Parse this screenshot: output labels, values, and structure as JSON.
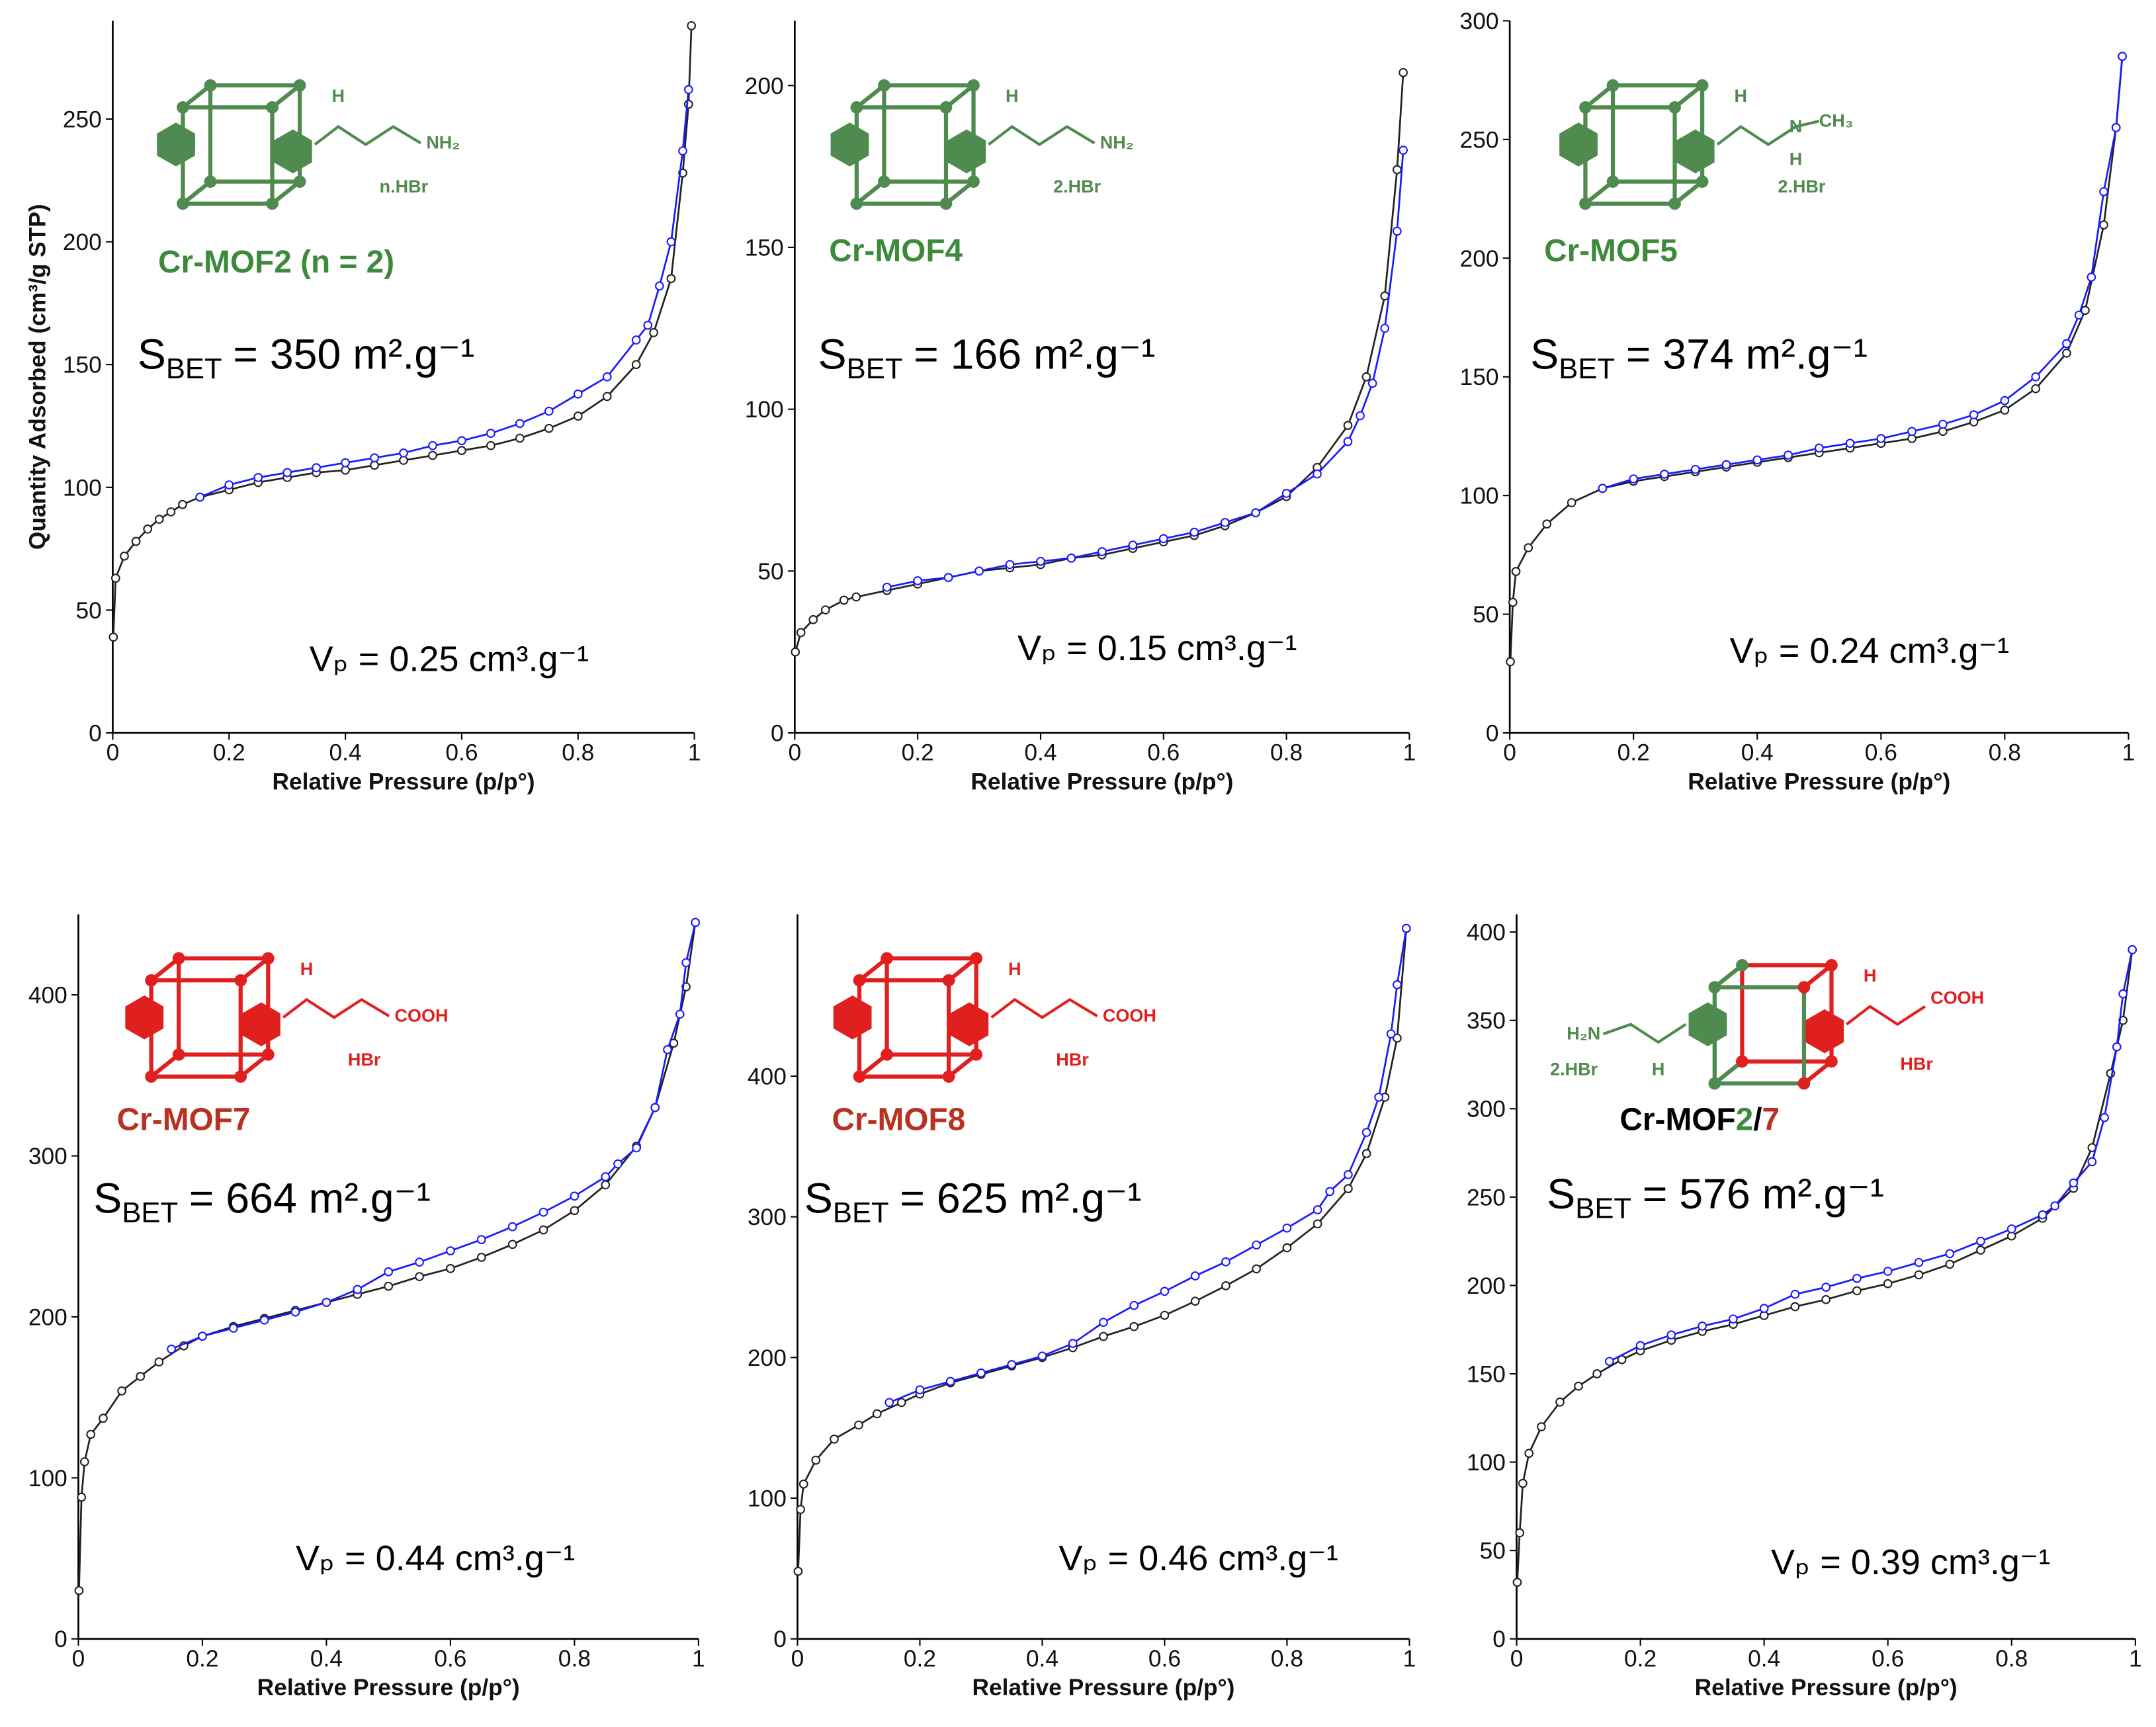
{
  "chart_data": [
    {
      "type": "line",
      "title": "Cr-MOF2 (n = 2)",
      "title_color": "#3d8a3d",
      "ylabel": "Quantity Adsorbed (cm³/g STP)",
      "xlabel": "Relative Pressure (p/p°)",
      "sbet": [
        "S",
        "BET",
        "= 350 m².g⁻¹"
      ],
      "vp": "Vₚ = 0.25 cm³.g⁻¹",
      "molecule_labels": [
        "H",
        "NH₂",
        "n.HBr"
      ],
      "molecule_colors": [
        "#4f8a4f"
      ],
      "xlim": [
        0,
        1
      ],
      "ylim": [
        0,
        290
      ],
      "xticks": [
        0,
        0.2,
        0.4,
        0.6,
        0.8,
        1
      ],
      "yticks": [
        0,
        50,
        100,
        150,
        200,
        250
      ],
      "series": [
        {
          "color": "#222222",
          "x": [
            0.001,
            0.005,
            0.02,
            0.04,
            0.06,
            0.08,
            0.1,
            0.12,
            0.15,
            0.2,
            0.25,
            0.3,
            0.35,
            0.4,
            0.45,
            0.5,
            0.55,
            0.6,
            0.65,
            0.7,
            0.75,
            0.8,
            0.85,
            0.9,
            0.93,
            0.96,
            0.98,
            0.99,
            0.995
          ],
          "values": [
            39,
            63,
            72,
            78,
            83,
            87,
            90,
            93,
            96,
            99,
            102,
            104,
            106,
            107,
            109,
            111,
            113,
            115,
            117,
            120,
            124,
            129,
            137,
            150,
            163,
            185,
            228,
            256,
            288
          ]
        },
        {
          "color": "#1a1aff",
          "x": [
            0.99,
            0.98,
            0.96,
            0.94,
            0.92,
            0.9,
            0.85,
            0.8,
            0.75,
            0.7,
            0.65,
            0.6,
            0.55,
            0.5,
            0.45,
            0.4,
            0.35,
            0.3,
            0.25,
            0.2,
            0.15
          ],
          "values": [
            262,
            237,
            200,
            182,
            166,
            160,
            145,
            138,
            131,
            126,
            122,
            119,
            117,
            114,
            112,
            110,
            108,
            106,
            104,
            101,
            96
          ]
        }
      ]
    },
    {
      "type": "line",
      "title": "Cr-MOF4",
      "title_color": "#3d8a3d",
      "xlabel": "Relative Pressure (p/p°)",
      "sbet": [
        "S",
        "BET",
        "= 166 m².g⁻¹"
      ],
      "vp": "Vₚ = 0.15 cm³.g⁻¹",
      "molecule_labels": [
        "H",
        "NH₂",
        "2.HBr"
      ],
      "molecule_colors": [
        "#4f8a4f"
      ],
      "xlim": [
        0,
        1
      ],
      "ylim": [
        0,
        220
      ],
      "xticks": [
        0,
        0.2,
        0.4,
        0.6,
        0.8,
        1
      ],
      "yticks": [
        0,
        50,
        100,
        150,
        200
      ],
      "series": [
        {
          "color": "#222222",
          "x": [
            0.001,
            0.01,
            0.03,
            0.05,
            0.08,
            0.1,
            0.15,
            0.2,
            0.25,
            0.3,
            0.35,
            0.4,
            0.45,
            0.5,
            0.55,
            0.6,
            0.65,
            0.7,
            0.75,
            0.8,
            0.85,
            0.9,
            0.93,
            0.96,
            0.98,
            0.99
          ],
          "values": [
            25,
            31,
            35,
            38,
            41,
            42,
            44,
            46,
            48,
            50,
            51,
            52,
            54,
            55,
            57,
            59,
            61,
            64,
            68,
            73,
            82,
            95,
            110,
            135,
            174,
            204
          ]
        },
        {
          "color": "#1a1aff",
          "x": [
            0.99,
            0.98,
            0.96,
            0.94,
            0.92,
            0.9,
            0.85,
            0.8,
            0.75,
            0.7,
            0.65,
            0.6,
            0.55,
            0.5,
            0.45,
            0.4,
            0.35,
            0.3,
            0.25,
            0.2,
            0.15
          ],
          "values": [
            180,
            155,
            125,
            108,
            98,
            90,
            80,
            74,
            68,
            65,
            62,
            60,
            58,
            56,
            54,
            53,
            52,
            50,
            48,
            47,
            45
          ]
        }
      ]
    },
    {
      "type": "line",
      "title": "Cr-MOF5",
      "title_color": "#3d8a3d",
      "xlabel": "Relative Pressure (p/p°)",
      "sbet": [
        "S",
        "BET",
        "= 374 m².g⁻¹"
      ],
      "vp": "Vₚ = 0.24 cm³.g⁻¹",
      "molecule_labels": [
        "H",
        "N",
        "CH₃",
        "H",
        "2.HBr"
      ],
      "molecule_colors": [
        "#4f8a4f"
      ],
      "xlim": [
        0,
        1
      ],
      "ylim": [
        0,
        300
      ],
      "xticks": [
        0,
        0.2,
        0.4,
        0.6,
        0.8,
        1
      ],
      "yticks": [
        0,
        50,
        100,
        150,
        200,
        250,
        300
      ],
      "series": [
        {
          "color": "#222222",
          "x": [
            0.001,
            0.005,
            0.01,
            0.03,
            0.06,
            0.1,
            0.15,
            0.2,
            0.25,
            0.3,
            0.35,
            0.4,
            0.45,
            0.5,
            0.55,
            0.6,
            0.65,
            0.7,
            0.75,
            0.8,
            0.85,
            0.9,
            0.93,
            0.96,
            0.98,
            0.99
          ],
          "values": [
            30,
            55,
            68,
            78,
            88,
            97,
            103,
            106,
            108,
            110,
            112,
            114,
            116,
            118,
            120,
            122,
            124,
            127,
            131,
            136,
            145,
            160,
            178,
            214,
            255,
            285
          ]
        },
        {
          "color": "#1a1aff",
          "x": [
            0.99,
            0.98,
            0.96,
            0.94,
            0.92,
            0.9,
            0.85,
            0.8,
            0.75,
            0.7,
            0.65,
            0.6,
            0.55,
            0.5,
            0.45,
            0.4,
            0.35,
            0.3,
            0.25,
            0.2,
            0.15
          ],
          "values": [
            285,
            255,
            228,
            192,
            176,
            164,
            150,
            140,
            134,
            130,
            127,
            124,
            122,
            120,
            117,
            115,
            113,
            111,
            109,
            107,
            103
          ]
        }
      ]
    },
    {
      "type": "line",
      "title": "Cr-MOF7",
      "title_color": "#b83222",
      "xlabel": "Relative Pressure (p/p°)",
      "sbet": [
        "S",
        "BET",
        "= 664 m².g⁻¹"
      ],
      "vp": "Vₚ = 0.44 cm³.g⁻¹",
      "molecule_labels": [
        "H",
        "COOH",
        "HBr"
      ],
      "molecule_colors": [
        "#e0201e"
      ],
      "xlim": [
        0,
        1
      ],
      "ylim": [
        0,
        450
      ],
      "xticks": [
        0,
        0.2,
        0.4,
        0.6,
        0.8,
        1
      ],
      "yticks": [
        0,
        100,
        200,
        300,
        400
      ],
      "series": [
        {
          "color": "#222222",
          "x": [
            0.001,
            0.005,
            0.01,
            0.02,
            0.04,
            0.07,
            0.1,
            0.13,
            0.17,
            0.2,
            0.25,
            0.3,
            0.35,
            0.4,
            0.45,
            0.5,
            0.55,
            0.6,
            0.65,
            0.7,
            0.75,
            0.8,
            0.85,
            0.9,
            0.93,
            0.96,
            0.98,
            0.995
          ],
          "values": [
            30,
            88,
            110,
            127,
            137,
            154,
            163,
            172,
            182,
            188,
            194,
            199,
            204,
            209,
            214,
            219,
            225,
            230,
            237,
            245,
            254,
            266,
            282,
            306,
            330,
            370,
            405,
            445
          ]
        },
        {
          "color": "#1a1aff",
          "x": [
            0.995,
            0.98,
            0.97,
            0.95,
            0.93,
            0.9,
            0.87,
            0.85,
            0.8,
            0.75,
            0.7,
            0.65,
            0.6,
            0.55,
            0.5,
            0.45,
            0.4,
            0.35,
            0.3,
            0.25,
            0.2,
            0.15
          ],
          "values": [
            445,
            420,
            388,
            366,
            330,
            305,
            295,
            287,
            275,
            265,
            256,
            248,
            241,
            234,
            228,
            217,
            209,
            203,
            198,
            193,
            188,
            180
          ]
        }
      ]
    },
    {
      "type": "line",
      "title": "Cr-MOF8",
      "title_color": "#b83222",
      "xlabel": "Relative Pressure (p/p°)",
      "sbet": [
        "S",
        "BET",
        "= 625 m².g⁻¹"
      ],
      "vp": "Vₚ = 0.46 cm³.g⁻¹",
      "molecule_labels": [
        "H",
        "COOH",
        "HBr"
      ],
      "molecule_colors": [
        "#e0201e"
      ],
      "xlim": [
        0,
        1
      ],
      "ylim": [
        0,
        515
      ],
      "xticks": [
        0,
        0.2,
        0.4,
        0.6,
        0.8,
        1
      ],
      "yticks": [
        0,
        100,
        200,
        300,
        400
      ],
      "series": [
        {
          "color": "#222222",
          "x": [
            0.001,
            0.005,
            0.01,
            0.03,
            0.06,
            0.1,
            0.13,
            0.17,
            0.2,
            0.25,
            0.3,
            0.35,
            0.4,
            0.45,
            0.5,
            0.55,
            0.6,
            0.65,
            0.7,
            0.75,
            0.8,
            0.85,
            0.9,
            0.93,
            0.96,
            0.98,
            0.995
          ],
          "values": [
            48,
            92,
            110,
            127,
            142,
            152,
            160,
            168,
            174,
            182,
            188,
            194,
            200,
            207,
            215,
            222,
            230,
            240,
            251,
            263,
            278,
            295,
            320,
            345,
            385,
            427,
            505
          ]
        },
        {
          "color": "#1a1aff",
          "x": [
            0.995,
            0.98,
            0.97,
            0.95,
            0.93,
            0.9,
            0.87,
            0.85,
            0.8,
            0.75,
            0.7,
            0.65,
            0.6,
            0.55,
            0.5,
            0.45,
            0.4,
            0.35,
            0.3,
            0.25,
            0.2,
            0.15
          ],
          "values": [
            505,
            465,
            430,
            385,
            360,
            330,
            318,
            305,
            292,
            280,
            268,
            258,
            247,
            237,
            225,
            210,
            201,
            195,
            189,
            183,
            177,
            168
          ]
        }
      ]
    },
    {
      "type": "line",
      "title": [
        "Cr-MOF",
        "2",
        "/",
        "7"
      ],
      "title_colors": [
        "#000000",
        "#3d8a3d",
        "#000000",
        "#b83222"
      ],
      "xlabel": "Relative Pressure (p/p°)",
      "sbet": [
        "S",
        "BET",
        "= 576 m².g⁻¹"
      ],
      "vp": "Vₚ = 0.39 cm³.g⁻¹",
      "molecule_labels": [
        "H₂N",
        "H",
        "2.HBr",
        "H",
        "COOH",
        "HBr"
      ],
      "molecule_colors": [
        "#4f8a4f",
        "#e0201e"
      ],
      "xlim": [
        0,
        1
      ],
      "ylim": [
        0,
        410
      ],
      "xticks": [
        0,
        0.2,
        0.4,
        0.6,
        0.8,
        1
      ],
      "yticks": [
        0,
        50,
        100,
        150,
        200,
        250,
        300,
        350,
        400
      ],
      "series": [
        {
          "color": "#222222",
          "x": [
            0.001,
            0.005,
            0.01,
            0.02,
            0.04,
            0.07,
            0.1,
            0.13,
            0.17,
            0.2,
            0.25,
            0.3,
            0.35,
            0.4,
            0.45,
            0.5,
            0.55,
            0.6,
            0.65,
            0.7,
            0.75,
            0.8,
            0.85,
            0.9,
            0.93,
            0.96,
            0.98,
            0.995
          ],
          "values": [
            32,
            60,
            88,
            105,
            120,
            134,
            143,
            150,
            158,
            163,
            169,
            174,
            178,
            183,
            188,
            192,
            197,
            201,
            206,
            212,
            220,
            228,
            238,
            255,
            278,
            320,
            350,
            390
          ]
        },
        {
          "color": "#1a1aff",
          "x": [
            0.995,
            0.98,
            0.97,
            0.95,
            0.93,
            0.9,
            0.87,
            0.85,
            0.8,
            0.75,
            0.7,
            0.65,
            0.6,
            0.55,
            0.5,
            0.45,
            0.4,
            0.35,
            0.3,
            0.25,
            0.2,
            0.15
          ],
          "values": [
            390,
            365,
            335,
            295,
            270,
            258,
            245,
            240,
            232,
            225,
            218,
            213,
            208,
            204,
            199,
            195,
            187,
            181,
            177,
            172,
            166,
            157
          ]
        }
      ]
    }
  ]
}
